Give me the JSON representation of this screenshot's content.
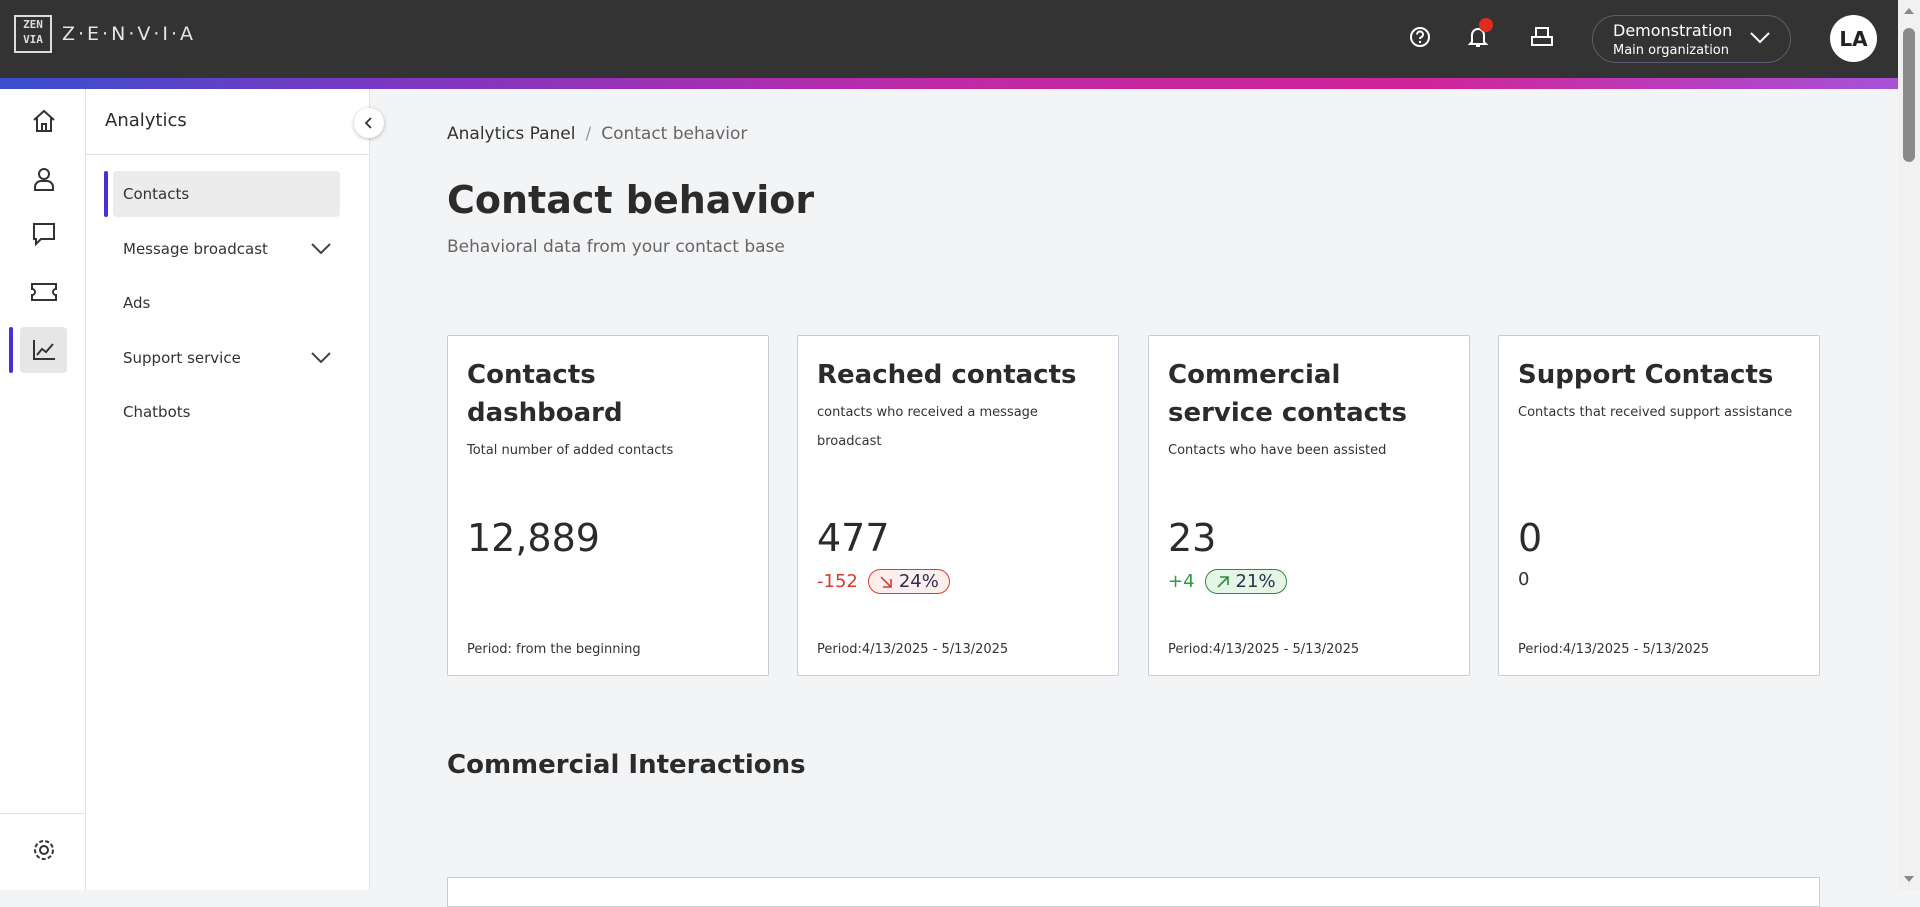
{
  "header": {
    "logo_text": "Z·E·N·V·I·A",
    "logo_mark": "ZEN VIA",
    "org_name": "Demonstration",
    "org_sub": "Main organization",
    "avatar_initials": "LA",
    "notification_dot_color": "#e02b1f",
    "icons": [
      "help-icon",
      "bell-icon",
      "inbox-icon",
      "chevron-down-icon"
    ]
  },
  "rail": {
    "items": [
      "home",
      "contacts",
      "chat",
      "ticket",
      "analytics"
    ],
    "active": "analytics",
    "bottom": "settings"
  },
  "sidebar": {
    "title": "Analytics",
    "items": [
      {
        "label": "Contacts",
        "active": true
      },
      {
        "label": "Message broadcast",
        "expandable": true
      },
      {
        "label": "Ads"
      },
      {
        "label": "Support service",
        "expandable": true
      },
      {
        "label": "Chatbots"
      }
    ]
  },
  "breadcrumb": {
    "parent": "Analytics Panel",
    "separator": "/",
    "current": "Contact behavior"
  },
  "page": {
    "title": "Contact behavior",
    "subtitle": "Behavioral data from your contact base"
  },
  "cards": [
    {
      "title": "Contacts dashboard",
      "desc": "Total number of added contacts",
      "value": "12,889",
      "period": "Period: from the beginning"
    },
    {
      "title": "Reached contacts",
      "desc": "contacts who received a message broadcast",
      "value": "477",
      "delta": "-152",
      "pct": "24%",
      "trend": "down",
      "period": "Period:4/13/2025 - 5/13/2025"
    },
    {
      "title": "Commercial service contacts",
      "desc": "Contacts who have been assisted",
      "value": "23",
      "delta": "+4",
      "pct": "21%",
      "trend": "up",
      "period": "Period:4/13/2025 - 5/13/2025"
    },
    {
      "title": "Support Contacts",
      "desc": "Contacts that received support assistance",
      "value": "0",
      "sub": "0",
      "period": "Period:4/13/2025 - 5/13/2025"
    }
  ],
  "section": {
    "title": "Commercial Interactions"
  },
  "colors": {
    "accent": "#4b2fd6",
    "negative": "#e0392b",
    "positive": "#2e9b3e",
    "header": "#333333"
  }
}
